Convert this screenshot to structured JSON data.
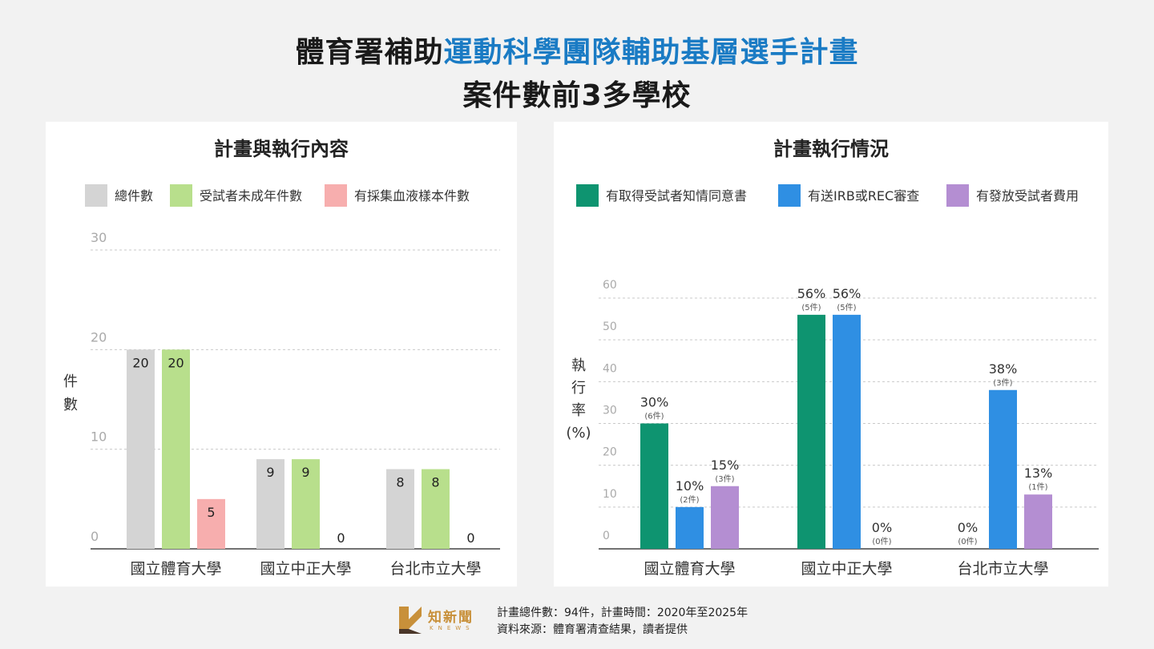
{
  "header": {
    "title_prefix": "體育署補助",
    "title_accent": "運動科學團隊輔助基層選手計畫",
    "title_line2": "案件數前3多學校"
  },
  "colors": {
    "accent": "#1a7bc4",
    "total": "#d4d4d4",
    "minor": "#b8df8c",
    "blood": "#f7aeae",
    "consent": "#0e9470",
    "irb": "#2f8fe3",
    "fee": "#b48ed2"
  },
  "chart_data": [
    {
      "type": "bar",
      "title": "計畫與執行內容",
      "ylabel": "件數",
      "ylim": [
        0,
        30
      ],
      "yticks": [
        0,
        10,
        20,
        30
      ],
      "grid": true,
      "legend_position": "top",
      "categories": [
        "國立體育大學",
        "國立中正大學",
        "台北市立大學"
      ],
      "series": [
        {
          "name": "總件數",
          "color": "#d4d4d4",
          "values": [
            20,
            9,
            8
          ],
          "labels": [
            "20",
            "9",
            "8"
          ]
        },
        {
          "name": "受試者未成年件數",
          "color": "#b8df8c",
          "values": [
            20,
            9,
            8
          ],
          "labels": [
            "20",
            "9",
            "8"
          ]
        },
        {
          "name": "有採集血液樣本件數",
          "color": "#f7aeae",
          "values": [
            5,
            0,
            0
          ],
          "labels": [
            "5",
            "0",
            "0"
          ]
        }
      ]
    },
    {
      "type": "bar",
      "title": "計畫執行情況",
      "ylabel": "執行率(%)",
      "ylim": [
        0,
        60
      ],
      "yticks": [
        0,
        10,
        20,
        30,
        40,
        50,
        60
      ],
      "grid": true,
      "legend_position": "top",
      "categories": [
        "國立體育大學",
        "國立中正大學",
        "台北市立大學"
      ],
      "series": [
        {
          "name": "有取得受試者知情同意書",
          "color": "#0e9470",
          "values": [
            30,
            56,
            0
          ],
          "labels": [
            "30%",
            "56%",
            "0%"
          ],
          "sublabels": [
            "(6件)",
            "(5件)",
            "(0件)"
          ]
        },
        {
          "name": "有送IRB或REC審查",
          "color": "#2f8fe3",
          "values": [
            10,
            56,
            38
          ],
          "labels": [
            "10%",
            "56%",
            "38%"
          ],
          "sublabels": [
            "(2件)",
            "(5件)",
            "(3件)"
          ]
        },
        {
          "name": "有發放受試者費用",
          "color": "#b48ed2",
          "values": [
            15,
            0,
            13
          ],
          "labels": [
            "15%",
            "0%",
            "13%"
          ],
          "sublabels": [
            "(3件)",
            "(0件)",
            "(1件)"
          ]
        }
      ]
    }
  ],
  "footer": {
    "logo_text": "知新聞",
    "logo_sub": "KNEWS",
    "note_line1": "計畫總件數：94件，計畫時間：2020年至2025年",
    "note_line2": "資料來源：體育署清查結果，讀者提供"
  }
}
